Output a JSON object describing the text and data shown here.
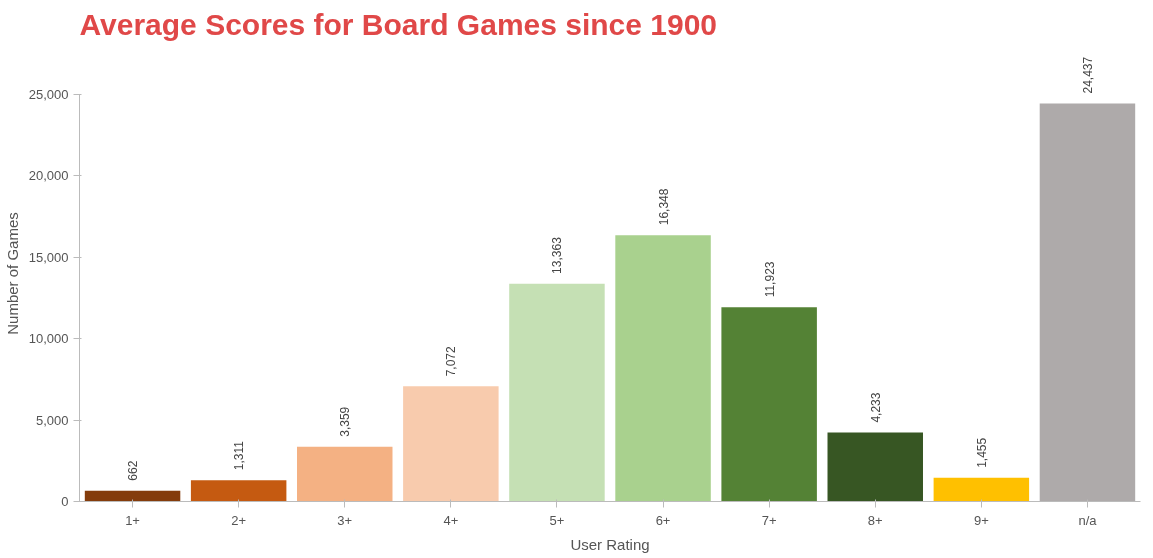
{
  "chart_data": {
    "type": "bar",
    "title": "Average Scores for Board Games since 1900",
    "xlabel": "User Rating",
    "ylabel": "Number of Games",
    "categories": [
      "1+",
      "2+",
      "3+",
      "4+",
      "5+",
      "6+",
      "7+",
      "8+",
      "9+",
      "n/a"
    ],
    "values": [
      662,
      1311,
      3359,
      7072,
      13363,
      16348,
      11923,
      4233,
      1455,
      24437
    ],
    "colors": [
      "#843c0c",
      "#c55a11",
      "#f4b183",
      "#f8cbad",
      "#c5e0b4",
      "#a9d18e",
      "#548235",
      "#375623",
      "#ffc000",
      "#aeaaaa"
    ],
    "ylim": [
      0,
      25000
    ],
    "yticks": [
      {
        "value": 0,
        "label": "0"
      },
      {
        "value": 5000,
        "label": "5,000"
      },
      {
        "value": 10000,
        "label": "10,000"
      },
      {
        "value": 15000,
        "label": "15,000"
      },
      {
        "value": 20000,
        "label": "20,000"
      },
      {
        "value": 25000,
        "label": "25,000"
      }
    ],
    "value_labels": [
      "662",
      "1,311",
      "3,359",
      "7,072",
      "13,363",
      "16,348",
      "11,923",
      "4,233",
      "1,455",
      "24,437"
    ],
    "grid": false
  }
}
